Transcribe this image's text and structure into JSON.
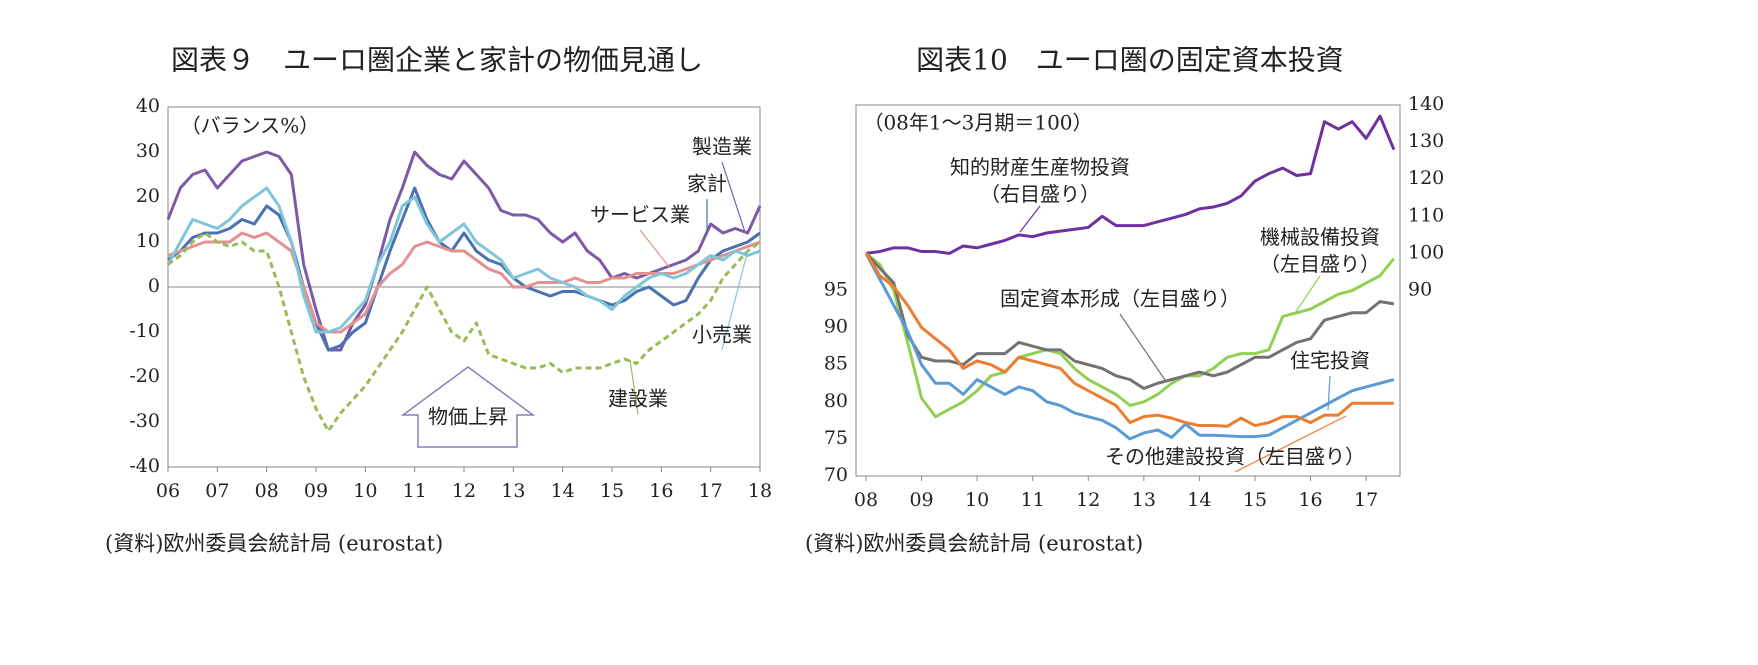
{
  "chart_data": [
    {
      "type": "line",
      "title": "図表９　ユーロ圏企業と家計の物価見通し",
      "annotations": [
        "（バランス%）",
        "物価上昇"
      ],
      "source": "(資料)欧州委員会統計局 (eurostat)",
      "xlim": [
        2006,
        2018
      ],
      "xticks": [
        {
          "value": 2006,
          "label": "06"
        },
        {
          "value": 2007,
          "label": "07"
        },
        {
          "value": 2008,
          "label": "08"
        },
        {
          "value": 2009,
          "label": "09"
        },
        {
          "value": 2010,
          "label": "10"
        },
        {
          "value": 2011,
          "label": "11"
        },
        {
          "value": 2012,
          "label": "12"
        },
        {
          "value": 2013,
          "label": "13"
        },
        {
          "value": 2014,
          "label": "14"
        },
        {
          "value": 2015,
          "label": "15"
        },
        {
          "value": 2016,
          "label": "16"
        },
        {
          "value": 2017,
          "label": "17"
        },
        {
          "value": 2018,
          "label": "18"
        }
      ],
      "ylim": [
        -40,
        40
      ],
      "yticks": [
        -40,
        -30,
        -20,
        -10,
        0,
        10,
        20,
        30,
        40
      ],
      "zero_line": true,
      "x": [
        2006,
        2006.25,
        2006.5,
        2006.75,
        2007,
        2007.25,
        2007.5,
        2007.75,
        2008,
        2008.25,
        2008.5,
        2008.75,
        2009,
        2009.25,
        2009.5,
        2009.75,
        2010,
        2010.25,
        2010.5,
        2010.75,
        2011,
        2011.25,
        2011.5,
        2011.75,
        2012,
        2012.25,
        2012.5,
        2012.75,
        2013,
        2013.25,
        2013.5,
        2013.75,
        2014,
        2014.25,
        2014.5,
        2014.75,
        2015,
        2015.25,
        2015.5,
        2015.75,
        2016,
        2016.25,
        2016.5,
        2016.75,
        2017,
        2017.25,
        2017.5,
        2017.75,
        2018
      ],
      "series": [
        {
          "name": "製造業",
          "color": "#7b5ba6",
          "values": [
            15,
            22,
            25,
            26,
            22,
            25,
            28,
            29,
            30,
            29,
            25,
            5,
            -5,
            -14,
            -14,
            -8,
            -4,
            5,
            15,
            22,
            30,
            27,
            25,
            24,
            28,
            25,
            22,
            17,
            16,
            16,
            15,
            12,
            10,
            12,
            8,
            6,
            2,
            3,
            2,
            3,
            4,
            5,
            6,
            8,
            14,
            12,
            13,
            12,
            18
          ]
        },
        {
          "name": "家計",
          "color": "#4a72b2",
          "values": [
            6,
            8,
            11,
            12,
            12,
            13,
            15,
            14,
            18,
            16,
            10,
            0,
            -8,
            -14,
            -13,
            -10,
            -8,
            0,
            8,
            15,
            22,
            15,
            10,
            8,
            12,
            8,
            6,
            5,
            2,
            0,
            -1,
            -2,
            -1,
            -1,
            -2,
            -3,
            -4,
            -3,
            -1,
            0,
            -2,
            -4,
            -3,
            2,
            6,
            8,
            9,
            10,
            12
          ]
        },
        {
          "name": "サービス業",
          "color": "#e39090",
          "values": [
            7,
            8,
            9,
            10,
            10,
            10,
            12,
            11,
            12,
            10,
            8,
            0,
            -8,
            -10,
            -10,
            -8,
            -6,
            0,
            3,
            5,
            9,
            10,
            9,
            8,
            8,
            6,
            4,
            3,
            0,
            0,
            1,
            1,
            1,
            2,
            1,
            1,
            2,
            2,
            3,
            3,
            3,
            3,
            4,
            5,
            6,
            7,
            8,
            9,
            10
          ]
        },
        {
          "name": "小売業",
          "color": "#80c6da",
          "values": [
            5,
            10,
            15,
            14,
            13,
            15,
            18,
            20,
            22,
            18,
            10,
            -2,
            -10,
            -10,
            -9,
            -6,
            -3,
            5,
            10,
            18,
            20,
            14,
            10,
            12,
            14,
            10,
            8,
            6,
            2,
            3,
            4,
            2,
            1,
            0,
            -2,
            -3,
            -5,
            -2,
            0,
            2,
            3,
            2,
            3,
            5,
            7,
            6,
            8,
            7,
            8
          ]
        },
        {
          "name": "建設業",
          "color": "#9bbb59",
          "dash": true,
          "values": [
            5,
            7,
            10,
            12,
            10,
            9,
            10,
            8,
            8,
            0,
            -10,
            -20,
            -27,
            -32,
            -28,
            -25,
            -22,
            -18,
            -14,
            -10,
            -5,
            0,
            -5,
            -10,
            -12,
            -8,
            -15,
            -16,
            -17,
            -18,
            -18,
            -17,
            -19,
            -18,
            -18,
            -18,
            -17,
            -16,
            -17,
            -14,
            -12,
            -10,
            -8,
            -6,
            -3,
            2,
            5,
            8,
            10
          ]
        }
      ]
    },
    {
      "type": "line",
      "title": "図表10　ユーロ圏の固定資本投資",
      "annotations": [
        "（08年1～3月期＝100）"
      ],
      "source": "(資料)欧州委員会統計局 (eurostat)",
      "xlim": [
        2007.82,
        2017.61
      ],
      "xticks": [
        {
          "value": 2008,
          "label": "08"
        },
        {
          "value": 2009,
          "label": "09"
        },
        {
          "value": 2010,
          "label": "10"
        },
        {
          "value": 2011,
          "label": "11"
        },
        {
          "value": 2012,
          "label": "12"
        },
        {
          "value": 2013,
          "label": "13"
        },
        {
          "value": 2014,
          "label": "14"
        },
        {
          "value": 2015,
          "label": "15"
        },
        {
          "value": 2016,
          "label": "16"
        },
        {
          "value": 2017,
          "label": "17"
        }
      ],
      "ylim": [
        70,
        120
      ],
      "yticks": [
        70,
        75,
        80,
        85,
        90,
        95
      ],
      "y2lim": [
        40,
        140
      ],
      "y2ticks": [
        90,
        100,
        110,
        120,
        130,
        140
      ],
      "x": [
        2008,
        2008.25,
        2008.5,
        2008.75,
        2009,
        2009.25,
        2009.5,
        2009.75,
        2010,
        2010.25,
        2010.5,
        2010.75,
        2011,
        2011.25,
        2011.5,
        2011.75,
        2012,
        2012.25,
        2012.5,
        2012.75,
        2013,
        2013.25,
        2013.5,
        2013.75,
        2014,
        2014.25,
        2014.5,
        2014.75,
        2015,
        2015.25,
        2015.5,
        2015.75,
        2016,
        2016.25,
        2016.5,
        2016.75,
        2017,
        2017.25,
        2017.5
      ],
      "series": [
        {
          "name": "知的財産生産物投資（右目盛り）",
          "color": "#7030a0",
          "axis": "y2",
          "values": [
            100,
            100.5,
            101.5,
            101.5,
            100.5,
            100.5,
            100,
            102,
            101.5,
            102.5,
            103.5,
            105,
            104.5,
            105.5,
            106,
            106.5,
            107,
            110,
            107.5,
            107.5,
            107.5,
            108.5,
            109.5,
            110.5,
            112,
            112.5,
            113.5,
            115.5,
            119.5,
            121.5,
            123,
            121,
            121.5,
            135.5,
            133.5,
            135.5,
            131,
            137,
            128
          ]
        },
        {
          "name": "機械設備投資（左目盛り）",
          "color": "#92d050",
          "values": [
            100,
            98.5,
            95,
            88,
            80.5,
            78,
            79,
            80,
            81.5,
            83.5,
            84,
            86,
            86.5,
            87,
            86.5,
            84.5,
            83,
            82,
            81,
            79.5,
            80,
            81,
            82.5,
            83.5,
            83.5,
            84.5,
            86,
            86.5,
            86.5,
            87,
            91.5,
            92,
            92.5,
            93.5,
            94.5,
            95,
            96,
            97,
            99.3
          ]
        },
        {
          "name": "固定資本形成（左目盛り）",
          "color": "#767171",
          "values": [
            100,
            98,
            96,
            89,
            86,
            85.5,
            85.5,
            85,
            86.5,
            86.5,
            86.5,
            88,
            87.5,
            87,
            87,
            85.5,
            85,
            84.5,
            83.5,
            83,
            81.8,
            82.5,
            83,
            83.5,
            84,
            83.5,
            84,
            85,
            86,
            86,
            87,
            88,
            88.5,
            91,
            91.5,
            92,
            92,
            93.5,
            93.2
          ]
        },
        {
          "name": "住宅投資",
          "color": "#5b9bd5",
          "values": [
            100,
            96.5,
            93,
            89.5,
            85,
            82.5,
            82.5,
            81,
            83,
            82,
            81,
            82,
            81.5,
            80,
            79.5,
            78.5,
            78,
            77.5,
            76.5,
            75,
            75.8,
            76.2,
            75.2,
            77,
            75.5,
            75.5,
            75.4,
            75.3,
            75.3,
            75.5,
            76.5,
            77.5,
            78.5,
            79.5,
            80.5,
            81.5,
            82,
            82.5,
            83
          ]
        },
        {
          "name": "その他建設投資（左目盛り）",
          "color": "#ed7d31",
          "values": [
            100,
            97,
            95.5,
            93,
            90,
            88.5,
            87,
            84.5,
            85.5,
            85,
            84,
            86,
            85.5,
            85,
            84.5,
            82.5,
            81.5,
            80.5,
            79.5,
            77.2,
            78,
            78.2,
            77.8,
            77.2,
            76.8,
            76.8,
            76.7,
            77.8,
            76.8,
            77.2,
            78,
            78,
            77.2,
            78.2,
            78.2,
            79.8,
            79.8,
            79.8,
            79.8
          ]
        }
      ]
    }
  ]
}
